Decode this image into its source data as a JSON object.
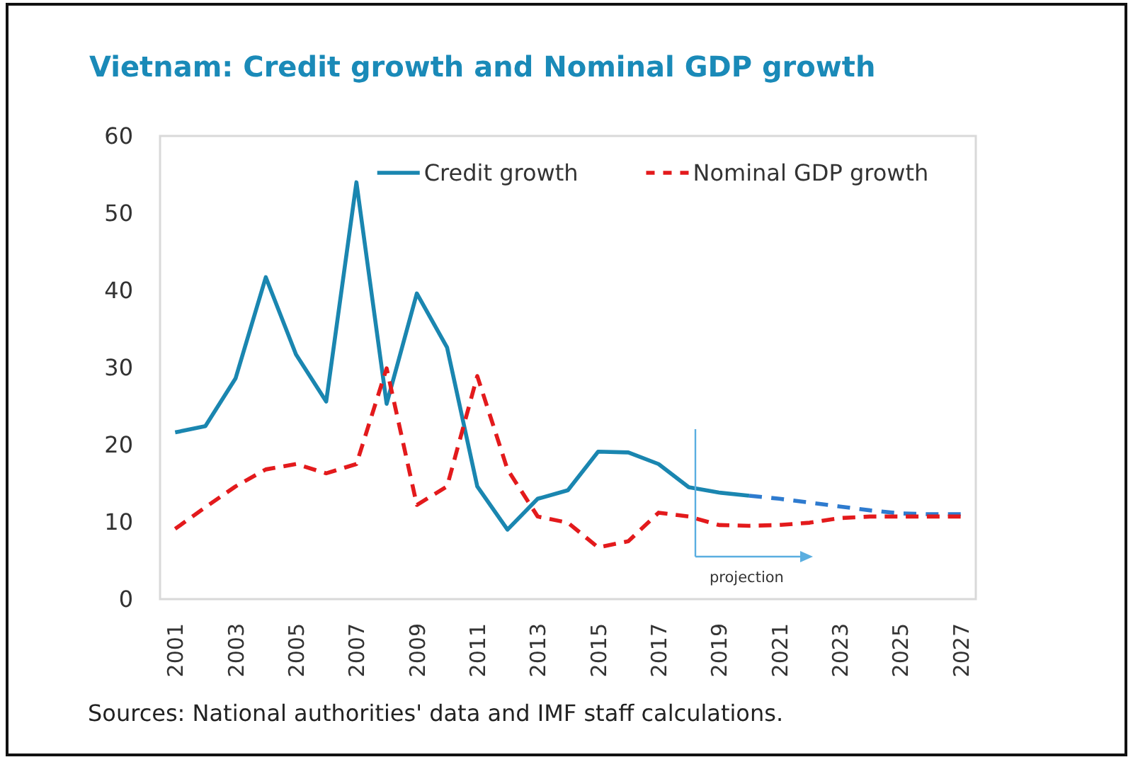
{
  "chart_data": {
    "type": "line",
    "title": "Vietnam: Credit growth and Nominal GDP growth",
    "categories": [
      "2001",
      null,
      "2003",
      null,
      "2005",
      null,
      "2007",
      null,
      "2009",
      null,
      "2011",
      null,
      "2013",
      null,
      "2015",
      null,
      "2017",
      null,
      "2019",
      null,
      "2021",
      null,
      "2023",
      null,
      "2025",
      null,
      "2027"
    ],
    "series": [
      {
        "name": "Credit growth",
        "color": "#1a86b0",
        "line_style": "solid",
        "values": [
          21.6,
          22.4,
          28.6,
          41.7,
          31.7,
          25.6,
          54.0,
          25.3,
          39.6,
          32.6,
          14.6,
          9.0,
          13.0,
          14.1,
          19.1,
          19.0,
          17.5,
          14.5,
          13.8,
          13.4,
          null,
          null,
          null,
          null,
          null,
          null,
          null
        ]
      },
      {
        "color": "#2e7bcf",
        "line_style": "dashed",
        "values": [
          null,
          null,
          null,
          null,
          null,
          null,
          null,
          null,
          null,
          null,
          null,
          null,
          null,
          null,
          null,
          null,
          null,
          null,
          null,
          13.4,
          13.0,
          12.5,
          12.0,
          11.5,
          11.1,
          11.0,
          11.0
        ]
      },
      {
        "name": "Nominal GDP growth",
        "color": "#e31a1c",
        "line_style": "dashed",
        "values": [
          9.1,
          11.9,
          14.6,
          16.8,
          17.5,
          16.3,
          17.5,
          29.9,
          12.2,
          14.6,
          28.9,
          16.8,
          10.7,
          9.9,
          6.7,
          7.5,
          11.2,
          10.7,
          9.6,
          9.5,
          9.6,
          9.9,
          10.5,
          10.7,
          10.7,
          10.7,
          10.7
        ]
      }
    ],
    "ylim": [
      0,
      60
    ],
    "yticks": [
      0,
      10,
      20,
      30,
      40,
      50,
      60
    ],
    "legend": "top",
    "annotations": [
      "projection",
      "Sources: National authorities' data and IMF staff calculations."
    ]
  }
}
